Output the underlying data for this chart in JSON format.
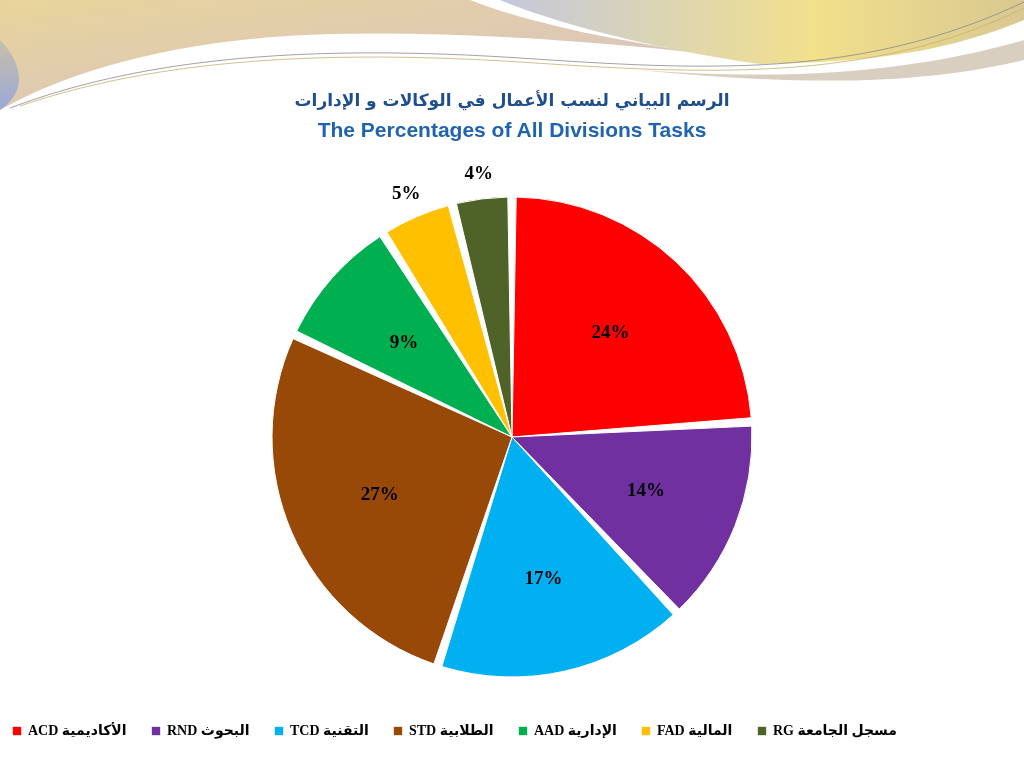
{
  "chart_data": {
    "type": "pie",
    "title": "الرسم البياني لنسب الأعمال في الوكالات و الإدارات",
    "subtitle": "The Percentages of All Divisions Tasks",
    "categories": [
      "ACD الأكاديمية",
      "RND البحوث",
      "TCD التقنية",
      "STD الطلابية",
      "AAD الإدارية",
      "FAD المالية",
      "RG مسجل الجامعة"
    ],
    "values": [
      24,
      14,
      17,
      27,
      9,
      5,
      4
    ],
    "colors": [
      "#ff0000",
      "#7030a0",
      "#00b0f0",
      "#984807",
      "#00b050",
      "#ffc000",
      "#4f6228"
    ],
    "value_labels": [
      "24%",
      "14%",
      "17%",
      "27%",
      "9%",
      "5%",
      "4%"
    ],
    "legend": "bottom"
  }
}
